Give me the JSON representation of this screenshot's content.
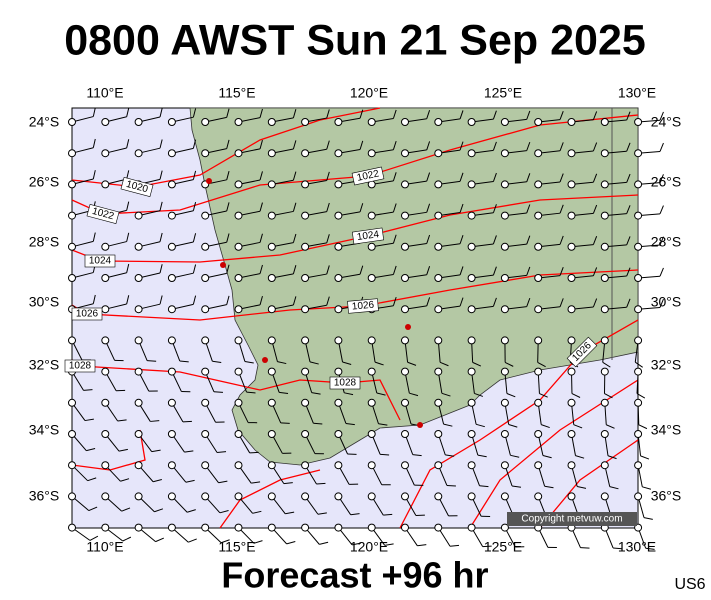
{
  "header": {
    "title": "0800 AWST Sun 21 Sep 2025"
  },
  "axes": {
    "longitude_labels": [
      "110°E",
      "115°E",
      "120°E",
      "125°E",
      "130°E"
    ],
    "latitude_labels": [
      "24°S",
      "26°S",
      "28°S",
      "30°S",
      "32°S",
      "34°S",
      "36°S"
    ]
  },
  "isobar_labels": [
    "1020",
    "1022",
    "1024",
    "1026",
    "1028",
    "1022",
    "1024",
    "1026",
    "1028",
    "1026"
  ],
  "copyright": "Copyright metvuw.com",
  "footer": {
    "subtitle": "Forecast +96 hr",
    "region": "US6"
  }
}
